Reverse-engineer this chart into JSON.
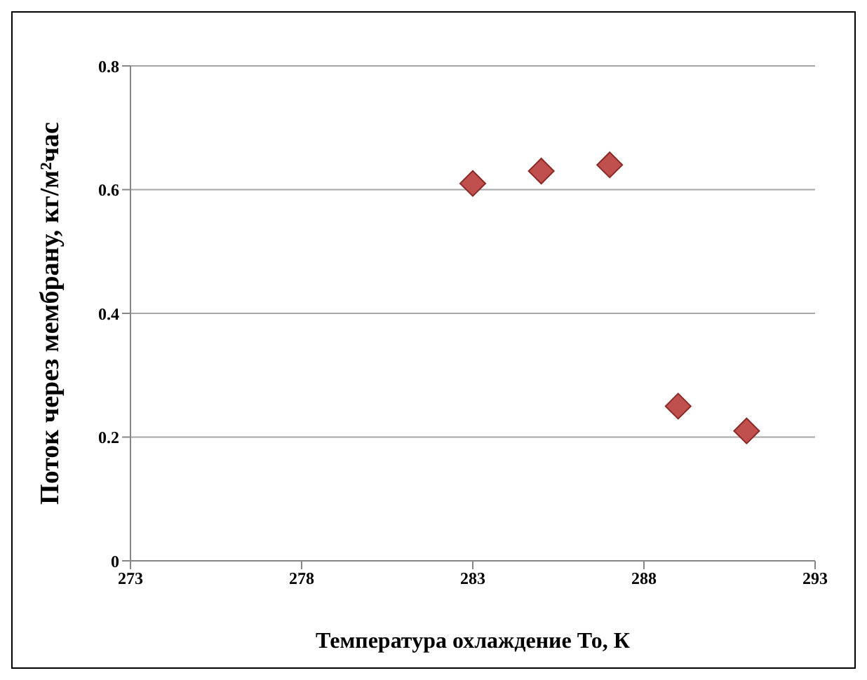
{
  "chart_data": {
    "type": "scatter",
    "xlabel": "Температура охлаждение То, К",
    "ylabel": "Поток через мембрану, кг/м²час",
    "x": [
      283,
      285,
      287,
      289,
      291
    ],
    "values": [
      0.61,
      0.63,
      0.64,
      0.25,
      0.21
    ],
    "color": "#c0504d",
    "marker": "diamond",
    "xlim": [
      273,
      293
    ],
    "xticks": [
      273,
      278,
      283,
      288,
      293
    ],
    "ylim": [
      0,
      0.8
    ],
    "yticks": [
      0,
      0.2,
      0.4,
      0.6,
      0.8
    ],
    "grid": "y"
  }
}
